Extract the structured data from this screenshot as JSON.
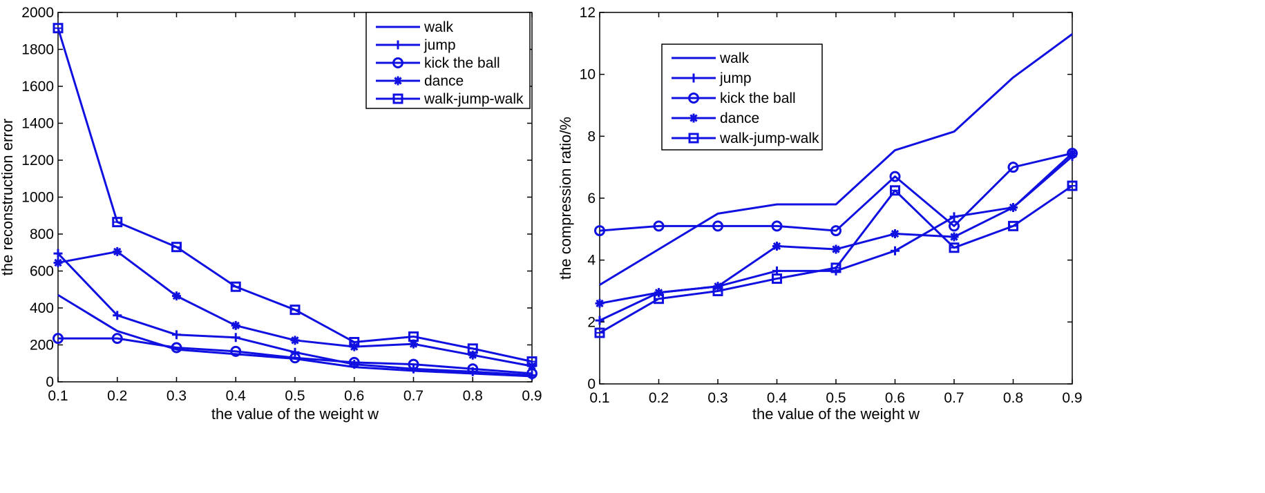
{
  "colors": {
    "series": "#1010e0",
    "axis": "#000000",
    "background": "#ffffff"
  },
  "chart_data": [
    {
      "type": "line",
      "title": "",
      "xlabel": "the value of the weight w",
      "ylabel": "the reconstruction error",
      "xlim": [
        0.1,
        0.9
      ],
      "ylim": [
        0,
        2000
      ],
      "xticks": [
        "0.1",
        "0.2",
        "0.3",
        "0.4",
        "0.5",
        "0.6",
        "0.7",
        "0.8",
        "0.9"
      ],
      "yticks": [
        "0",
        "200",
        "400",
        "600",
        "800",
        "1000",
        "1200",
        "1400",
        "1600",
        "1800",
        "2000"
      ],
      "x": [
        0.1,
        0.2,
        0.3,
        0.4,
        0.5,
        0.6,
        0.7,
        0.8,
        0.9
      ],
      "legend_position": "top-right",
      "series": [
        {
          "name": "walk",
          "marker": "none",
          "values": [
            470,
            275,
            175,
            150,
            125,
            80,
            60,
            45,
            30
          ]
        },
        {
          "name": "jump",
          "marker": "plus",
          "values": [
            695,
            360,
            255,
            240,
            160,
            95,
            70,
            55,
            35
          ]
        },
        {
          "name": "kick the ball",
          "marker": "circle",
          "values": [
            235,
            235,
            185,
            165,
            130,
            105,
            95,
            70,
            45
          ]
        },
        {
          "name": "dance",
          "marker": "star",
          "values": [
            645,
            705,
            465,
            305,
            225,
            190,
            205,
            145,
            85
          ]
        },
        {
          "name": "walk-jump-walk",
          "marker": "square",
          "values": [
            1915,
            865,
            730,
            515,
            390,
            215,
            245,
            180,
            110
          ]
        }
      ]
    },
    {
      "type": "line",
      "title": "",
      "xlabel": "the value of the weight w",
      "ylabel": "the compression ratio/%",
      "xlim": [
        0.1,
        0.9
      ],
      "ylim": [
        0,
        12
      ],
      "xticks": [
        "0.1",
        "0.2",
        "0.3",
        "0.4",
        "0.5",
        "0.6",
        "0.7",
        "0.8",
        "0.9"
      ],
      "yticks": [
        "0",
        "2",
        "4",
        "6",
        "8",
        "10",
        "12"
      ],
      "x": [
        0.1,
        0.2,
        0.3,
        0.4,
        0.5,
        0.6,
        0.7,
        0.8,
        0.9
      ],
      "legend_position": "top-left",
      "series": [
        {
          "name": "walk",
          "marker": "none",
          "values": [
            3.2,
            4.35,
            5.5,
            5.8,
            5.8,
            7.55,
            8.15,
            9.9,
            11.3
          ]
        },
        {
          "name": "jump",
          "marker": "plus",
          "values": [
            2.05,
            2.95,
            3.15,
            3.65,
            3.65,
            4.3,
            5.4,
            5.7,
            7.35
          ]
        },
        {
          "name": "kick the ball",
          "marker": "circle",
          "values": [
            4.95,
            5.1,
            5.1,
            5.1,
            4.95,
            6.7,
            5.1,
            7.0,
            7.45
          ]
        },
        {
          "name": "dance",
          "marker": "star",
          "values": [
            2.6,
            2.95,
            3.15,
            4.45,
            4.35,
            4.85,
            4.75,
            5.7,
            7.45
          ]
        },
        {
          "name": "walk-jump-walk",
          "marker": "square",
          "values": [
            1.65,
            2.75,
            3.0,
            3.4,
            3.75,
            6.25,
            4.4,
            5.1,
            6.4
          ]
        }
      ]
    }
  ]
}
